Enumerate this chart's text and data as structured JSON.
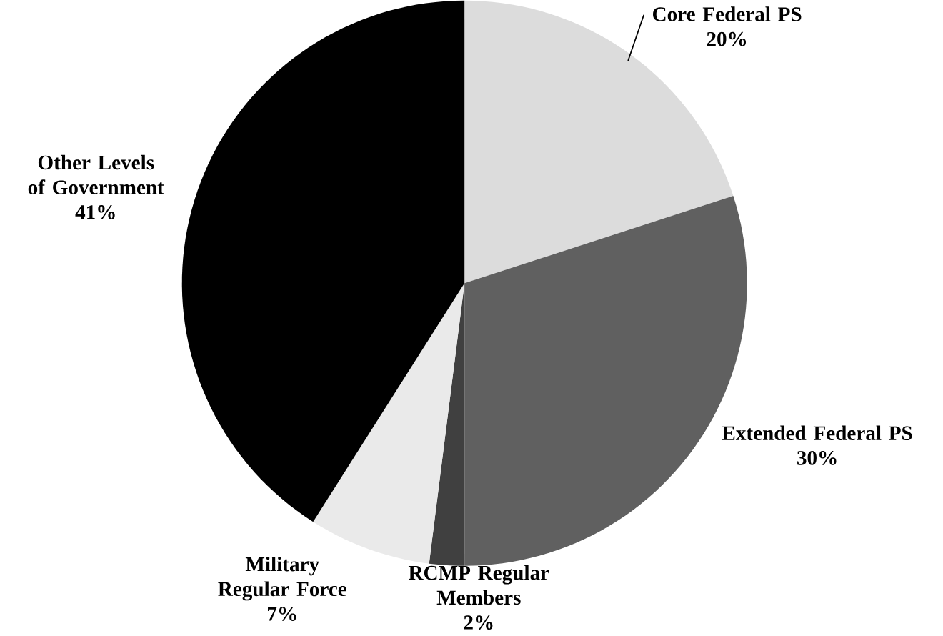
{
  "chart_data": {
    "type": "pie",
    "categories": [
      "Core Federal PS",
      "Extended Federal PS",
      "RCMP Regular Members",
      "Military Regular Force",
      "Other Levels of Government"
    ],
    "values": [
      20,
      30,
      2,
      7,
      41
    ],
    "value_labels": [
      "20%",
      "30%",
      "2%",
      "7%",
      "41%"
    ],
    "colors": [
      "#dcdcdc",
      "#606060",
      "#404040",
      "#eaeaea",
      "#000000"
    ]
  }
}
